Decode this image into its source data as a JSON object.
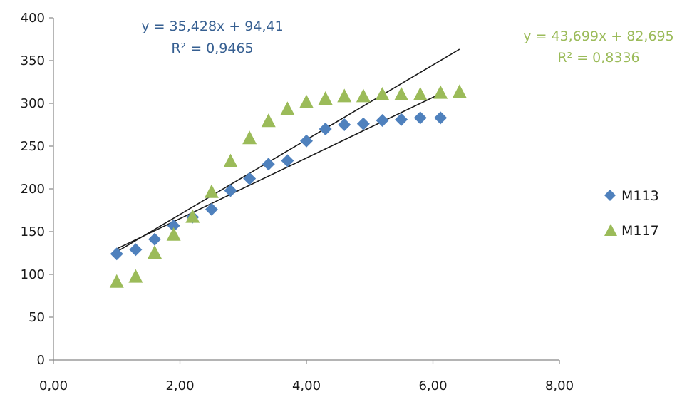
{
  "chart_data": {
    "type": "scatter",
    "xlim": [
      0,
      8
    ],
    "ylim": [
      0,
      400
    ],
    "x_ticks": [
      "0,00",
      "2,00",
      "4,00",
      "6,00",
      "8,00"
    ],
    "y_ticks": [
      "0",
      "50",
      "100",
      "150",
      "200",
      "250",
      "300",
      "350",
      "400"
    ],
    "grid": false,
    "legend_position": "right",
    "series": [
      {
        "name": "M113",
        "color": "#4f81bd",
        "marker": "diamond",
        "points": [
          [
            1.0,
            124
          ],
          [
            1.3,
            129
          ],
          [
            1.6,
            141
          ],
          [
            1.9,
            157
          ],
          [
            2.2,
            167
          ],
          [
            2.5,
            176
          ],
          [
            2.8,
            198
          ],
          [
            3.1,
            212
          ],
          [
            3.4,
            229
          ],
          [
            3.7,
            233
          ],
          [
            4.0,
            256
          ],
          [
            4.3,
            270
          ],
          [
            4.6,
            275
          ],
          [
            4.9,
            276
          ],
          [
            5.2,
            280
          ],
          [
            5.5,
            281
          ],
          [
            5.8,
            283
          ],
          [
            6.12,
            283
          ]
        ],
        "trendline": {
          "equation": "y = 35,428x + 94,41",
          "r_squared": "R² = 0,9465",
          "slope": 35.428,
          "intercept": 94.41,
          "x_range": [
            1.0,
            6.12
          ],
          "label_color": "#365f91"
        }
      },
      {
        "name": "M117",
        "color": "#9bbb59",
        "marker": "triangle",
        "points": [
          [
            1.0,
            91
          ],
          [
            1.3,
            97
          ],
          [
            1.6,
            125
          ],
          [
            1.9,
            146
          ],
          [
            2.2,
            167
          ],
          [
            2.5,
            196
          ],
          [
            2.8,
            232
          ],
          [
            3.1,
            259
          ],
          [
            3.4,
            279
          ],
          [
            3.7,
            293
          ],
          [
            4.0,
            301
          ],
          [
            4.3,
            305
          ],
          [
            4.6,
            308
          ],
          [
            4.9,
            308
          ],
          [
            5.2,
            310
          ],
          [
            5.5,
            310
          ],
          [
            5.8,
            310
          ],
          [
            6.12,
            312
          ],
          [
            6.42,
            313
          ]
        ],
        "trendline": {
          "equation": "y = 43,699x + 82,695",
          "r_squared": "R² = 0,8336",
          "slope": 43.699,
          "intercept": 82.695,
          "x_range": [
            1.0,
            6.42
          ],
          "label_color": "#9bbb59"
        }
      }
    ]
  }
}
